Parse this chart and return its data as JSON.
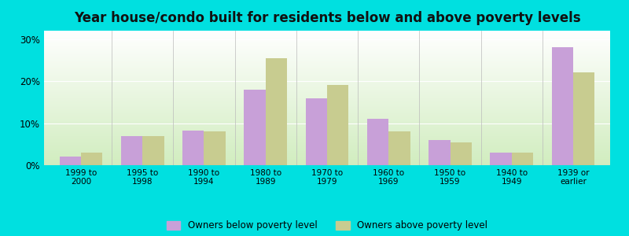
{
  "title": "Year house/condo built for residents below and above poverty levels",
  "categories": [
    "1999 to\n2000",
    "1995 to\n1998",
    "1990 to\n1994",
    "1980 to\n1989",
    "1970 to\n1979",
    "1960 to\n1969",
    "1950 to\n1959",
    "1940 to\n1949",
    "1939 or\nearlier"
  ],
  "below_poverty": [
    2.0,
    7.0,
    8.2,
    18.0,
    16.0,
    11.0,
    6.0,
    3.0,
    28.0
  ],
  "above_poverty": [
    3.0,
    7.0,
    8.0,
    25.5,
    19.0,
    8.0,
    5.5,
    3.0,
    22.0
  ],
  "below_color": "#c8a0d8",
  "above_color": "#c8cc90",
  "ylim": [
    0,
    32
  ],
  "yticks": [
    0,
    10,
    20,
    30
  ],
  "ytick_labels": [
    "0%",
    "10%",
    "20%",
    "30%"
  ],
  "outer_background": "#00e0e0",
  "title_fontsize": 12,
  "bar_width": 0.35,
  "legend_below_label": "Owners below poverty level",
  "legend_above_label": "Owners above poverty level"
}
